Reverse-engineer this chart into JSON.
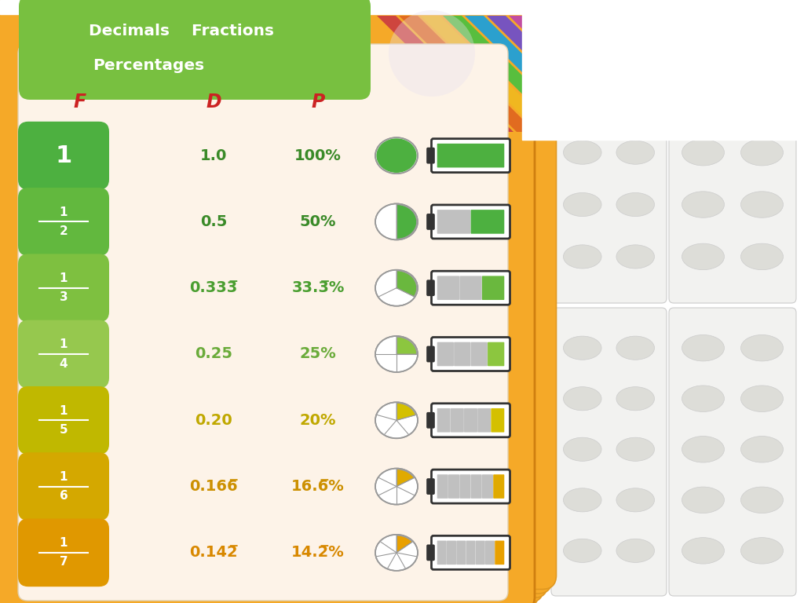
{
  "title_line1": "Decimals   Fractions",
  "title_line2": "Percentages",
  "col_f": "F",
  "col_d": "D",
  "col_p": "P",
  "rows": [
    {
      "frac_num": "1",
      "frac_den": "",
      "decimal": "1.0",
      "percent": "100%",
      "pie_filled": 1.0,
      "bar_filled": 1.0,
      "pie_color": "#4db040",
      "bar_color": "#4db040",
      "n_slices": 1
    },
    {
      "frac_num": "1",
      "frac_den": "2",
      "decimal": "0.5",
      "percent": "50%",
      "pie_filled": 0.5,
      "bar_filled": 0.5,
      "pie_color": "#4db040",
      "bar_color": "#4db040",
      "n_slices": 2
    },
    {
      "frac_num": "1",
      "frac_den": "3",
      "decimal": "0.333̅",
      "percent": "33.3̅%",
      "pie_filled": 0.3333,
      "bar_filled": 0.3333,
      "pie_color": "#6ab83e",
      "bar_color": "#6ab83e",
      "n_slices": 3
    },
    {
      "frac_num": "1",
      "frac_den": "4",
      "decimal": "0.25",
      "percent": "25%",
      "pie_filled": 0.25,
      "bar_filled": 0.25,
      "pie_color": "#8cc63f",
      "bar_color": "#8cc63f",
      "n_slices": 4
    },
    {
      "frac_num": "1",
      "frac_den": "5",
      "decimal": "0.20",
      "percent": "20%",
      "pie_filled": 0.2,
      "bar_filled": 0.2,
      "pie_color": "#d4c000",
      "bar_color": "#d4c000",
      "n_slices": 5
    },
    {
      "frac_num": "1",
      "frac_den": "6",
      "decimal": "0.166̅",
      "percent": "16.6̅%",
      "pie_filled": 0.1667,
      "bar_filled": 0.1667,
      "pie_color": "#e0aa00",
      "bar_color": "#e0aa00",
      "n_slices": 6
    },
    {
      "frac_num": "1",
      "frac_den": "7",
      "decimal": "0.142̅",
      "percent": "14.2̅%",
      "pie_filled": 0.1429,
      "bar_filled": 0.1429,
      "pie_color": "#e8a000",
      "bar_color": "#e8a000",
      "n_slices": 7
    }
  ],
  "fraction_tab_colors": [
    "#4db040",
    "#62b83e",
    "#7ec040",
    "#96c84e",
    "#c0b800",
    "#d4a800",
    "#e09800"
  ],
  "bg_color": "#fdf3e8",
  "orange_bg": "#f5a928",
  "decimal_colors": [
    "#3a8a28",
    "#3a8a28",
    "#4a9e30",
    "#6aab3a",
    "#c0a800",
    "#cc9000",
    "#d88800"
  ],
  "percent_colors": [
    "#3a8a28",
    "#3a8a28",
    "#4a9e30",
    "#6aab3a",
    "#c0a800",
    "#cc9000",
    "#d88800"
  ],
  "sticker_oval_color": "#ddddd8",
  "sticker_bg": "#f2f2f0"
}
